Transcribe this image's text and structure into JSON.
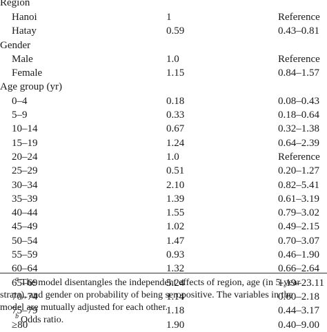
{
  "table": {
    "sections": [
      {
        "heading": "Region",
        "rows": [
          {
            "label": "Hanoi",
            "or": "1",
            "ci": "Reference"
          },
          {
            "label": "Hatay",
            "or": "0.59",
            "ci": "0.43–0.81"
          }
        ]
      },
      {
        "heading": "Gender",
        "rows": [
          {
            "label": "Male",
            "or": "1.0",
            "ci": "Reference"
          },
          {
            "label": "Female",
            "or": "1.15",
            "ci": "0.84–1.57"
          }
        ]
      },
      {
        "heading": "Age group (yr)",
        "rows": [
          {
            "label": "0–4",
            "or": "0.18",
            "ci": "0.08–0.43"
          },
          {
            "label": "5–9",
            "or": "0.33",
            "ci": "0.18–0.64"
          },
          {
            "label": "10–14",
            "or": "0.67",
            "ci": "0.32–1.38"
          },
          {
            "label": "15–19",
            "or": "1.24",
            "ci": "0.64–2.39"
          },
          {
            "label": "20–24",
            "or": "1.0",
            "ci": "Reference"
          },
          {
            "label": "25–29",
            "or": "0.51",
            "ci": "0.20–1.27"
          },
          {
            "label": "30–34",
            "or": "2.10",
            "ci": "0.82–5.41"
          },
          {
            "label": "35–39",
            "or": "1.39",
            "ci": "0.61–3.19"
          },
          {
            "label": "40–44",
            "or": "1.55",
            "ci": "0.79–3.02"
          },
          {
            "label": "45–49",
            "or": "1.02",
            "ci": "0.49–2.15"
          },
          {
            "label": "50–54",
            "or": "1.47",
            "ci": "0.70–3.07"
          },
          {
            "label": "55–59",
            "or": "0.93",
            "ci": "0.46–1.90"
          },
          {
            "label": "60–64",
            "or": "1.32",
            "ci": "0.66–2.64"
          },
          {
            "label": "65–69",
            "or": "5.24",
            "ci": "1.19–23.11"
          },
          {
            "label": "70–74",
            "or": "1.14",
            "ci": "0.60–2.18"
          },
          {
            "label": "75–79",
            "or": "1.18",
            "ci": "0.44–3.17"
          },
          {
            "label": "≥80",
            "or": "1.90",
            "ci": "0.40–9.00"
          }
        ]
      }
    ]
  },
  "footnotes": {
    "a": {
      "marker": "a",
      "line1": "The model disentangles the independent effects of region, age (in 5-year",
      "line2": "strata), and gender on probability of being seropositive. The variables in the",
      "line3": "model are mutually adjusted for each other."
    },
    "b": {
      "marker": "b",
      "text": "Odds ratio."
    }
  }
}
